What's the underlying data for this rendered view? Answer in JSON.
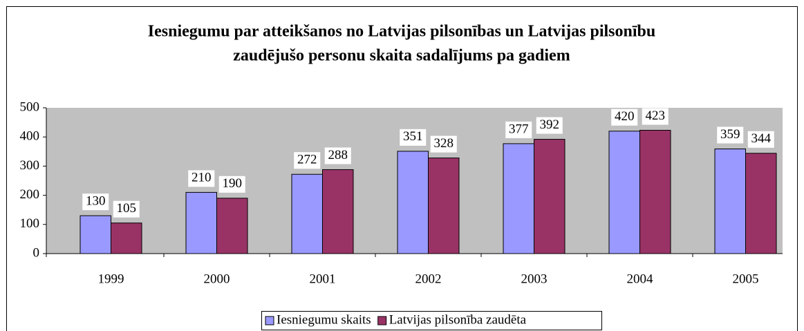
{
  "chart_data": {
    "type": "bar",
    "title": [
      "Iesniegumu par atteikšanos no Latvijas pilsonības un Latvijas pilsonību",
      "zaudējušo personu skaita sadalījums pa gadiem"
    ],
    "categories": [
      "1999",
      "2000",
      "2001",
      "2002",
      "2003",
      "2004",
      "2005"
    ],
    "series": [
      {
        "name": "Iesniegumu skaits",
        "color": "#9999ff",
        "values": [
          130,
          210,
          272,
          351,
          377,
          420,
          359
        ]
      },
      {
        "name": "Latvijas pilsonība zaudēta",
        "color": "#993366",
        "values": [
          105,
          190,
          288,
          328,
          392,
          423,
          344
        ]
      }
    ],
    "ylim": [
      0,
      500
    ],
    "yticks": [
      0,
      100,
      200,
      300,
      400,
      500
    ],
    "legend": "bottom"
  }
}
